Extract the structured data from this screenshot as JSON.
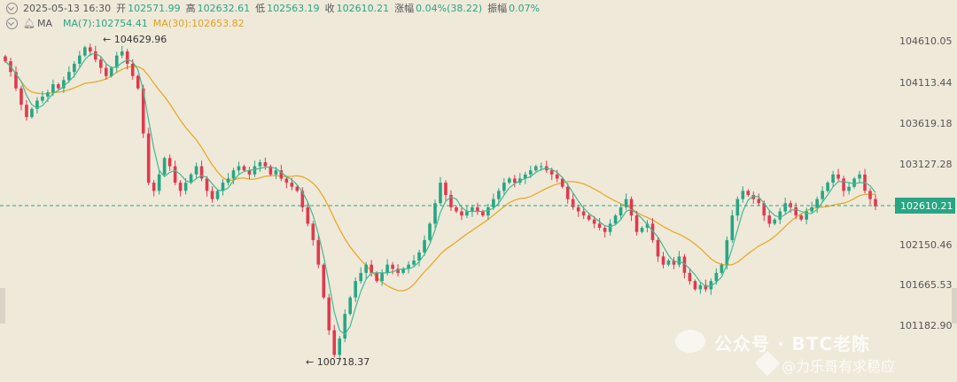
{
  "header": {
    "datetime": "2025-05-13 16:30",
    "open_label": "开",
    "open": "102571.99",
    "high_label": "高",
    "high": "102632.61",
    "low_label": "低",
    "low": "102563.19",
    "close_label": "收",
    "close": "102610.21",
    "change_label": "涨幅",
    "change": "0.04%(38.22)",
    "amplitude_label": "振幅",
    "amplitude": "0.07%"
  },
  "ma_legend": {
    "label": "MA",
    "ma7": "MA(7):102754.41",
    "ma30": "MA(30):102653.82"
  },
  "watermark": {
    "line1": "公众号 · BTC老陈",
    "line2": "@力乐哥有求稳应"
  },
  "colors": {
    "up": "#27a683",
    "down": "#e0394e",
    "ma7": "#3dbb94",
    "ma30": "#e8a92a",
    "background": "#efe9da"
  },
  "chart_data": {
    "type": "candlestick",
    "y_ticks": [
      "104610.05",
      "104113.44",
      "103619.18",
      "103127.28",
      "102150.46",
      "101665.53",
      "101182.90"
    ],
    "current_price": "102610.21",
    "high_marker": "104629.96",
    "low_marker": "100718.37",
    "ylim": [
      100718.37,
      104629.96
    ],
    "close_series": [
      104380,
      104250,
      104050,
      103850,
      103700,
      103800,
      103900,
      103950,
      104000,
      104100,
      104050,
      104150,
      104250,
      104350,
      104450,
      104550,
      104500,
      104400,
      104300,
      104200,
      104300,
      104450,
      104500,
      104350,
      104200,
      104050,
      103500,
      102900,
      102800,
      103000,
      103200,
      103100,
      102900,
      102800,
      102900,
      103000,
      103100,
      102950,
      102800,
      102700,
      102800,
      102900,
      102950,
      103050,
      103100,
      103050,
      103000,
      103100,
      103150,
      103100,
      103000,
      103050,
      102950,
      102900,
      102850,
      102800,
      102600,
      102400,
      102200,
      101900,
      101500,
      101100,
      100800,
      101000,
      101300,
      101500,
      101700,
      101800,
      101900,
      101800,
      101700,
      101800,
      101900,
      101850,
      101800,
      101850,
      101900,
      101950,
      102050,
      102200,
      102400,
      102650,
      102900,
      102750,
      102600,
      102550,
      102500,
      102550,
      102600,
      102550,
      102500,
      102600,
      102700,
      102800,
      102900,
      102950,
      102900,
      102950,
      103000,
      103050,
      103100,
      103100,
      103050,
      103000,
      102950,
      102850,
      102700,
      102600,
      102550,
      102500,
      102450,
      102400,
      102350,
      102300,
      102400,
      102500,
      102600,
      102700,
      102500,
      102300,
      102350,
      102400,
      102200,
      102000,
      101900,
      101950,
      101900,
      102000,
      101800,
      101700,
      101600,
      101650,
      101600,
      101700,
      101800,
      101900,
      102200,
      102500,
      102700,
      102800,
      102750,
      102700,
      102650,
      102500,
      102400,
      102450,
      102550,
      102650,
      102600,
      102500,
      102450,
      102550,
      102600,
      102700,
      102800,
      102900,
      103000,
      102950,
      102800,
      102850,
      102950,
      103000,
      102800,
      102700,
      102610
    ]
  }
}
